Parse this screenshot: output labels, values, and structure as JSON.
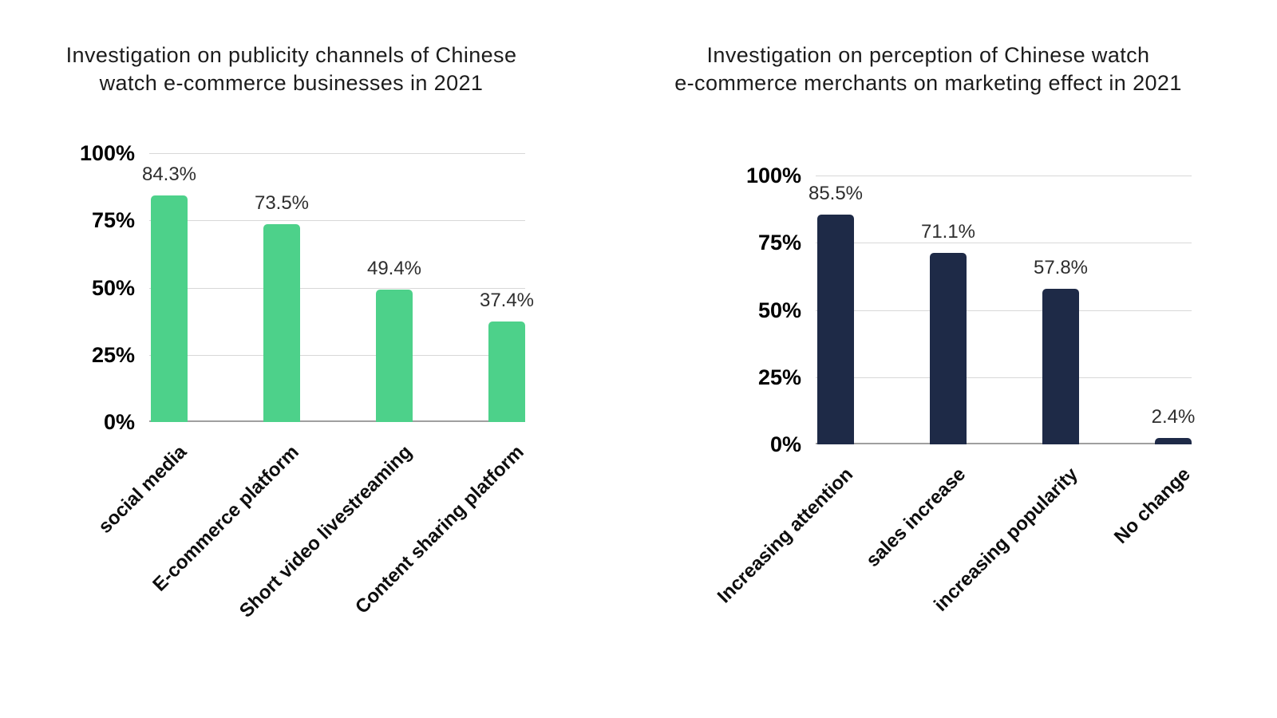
{
  "chart_data": [
    {
      "type": "bar",
      "title": "Investigation on publicity channels of Chinese watch e-commerce businesses in 2021",
      "title_lines": [
        "Investigation on publicity channels of Chinese",
        "watch e-commerce businesses in 2021"
      ],
      "categories": [
        "social media",
        "E-commerce platform",
        "Short video livestreaming",
        "Content sharing platform"
      ],
      "values": [
        84.3,
        73.5,
        49.4,
        37.4
      ],
      "data_labels": [
        "84.3%",
        "73.5%",
        "49.4%",
        "37.4%"
      ],
      "y_tick_labels": [
        "100%",
        "75%",
        "50%",
        "25%",
        "0%"
      ],
      "xlabel": "",
      "ylabel": "",
      "ylim": [
        0,
        100
      ],
      "grid": true,
      "legend": false,
      "bar_color": "#4dd18a",
      "grid_color": "#d8d8d8",
      "baseline_color": "#9f9f9f",
      "label_rotation_deg": -45
    },
    {
      "type": "bar",
      "title": "Investigation on perception of Chinese watch e-commerce merchants on marketing effect in 2021",
      "title_lines": [
        "Investigation on perception of Chinese watch",
        "e-commerce merchants on marketing effect in 2021"
      ],
      "categories": [
        "Increasing attention",
        "sales increase",
        "increasing popularity",
        "No change"
      ],
      "values": [
        85.5,
        71.1,
        57.8,
        2.4
      ],
      "data_labels": [
        "85.5%",
        "71.1%",
        "57.8%",
        "2.4%"
      ],
      "y_tick_labels": [
        "100%",
        "75%",
        "50%",
        "25%",
        "0%"
      ],
      "xlabel": "",
      "ylabel": "",
      "ylim": [
        0,
        100
      ],
      "grid": true,
      "legend": false,
      "bar_color": "#1e2a47",
      "grid_color": "#d8d8d8",
      "baseline_color": "#9f9f9f",
      "label_rotation_deg": -45
    }
  ]
}
